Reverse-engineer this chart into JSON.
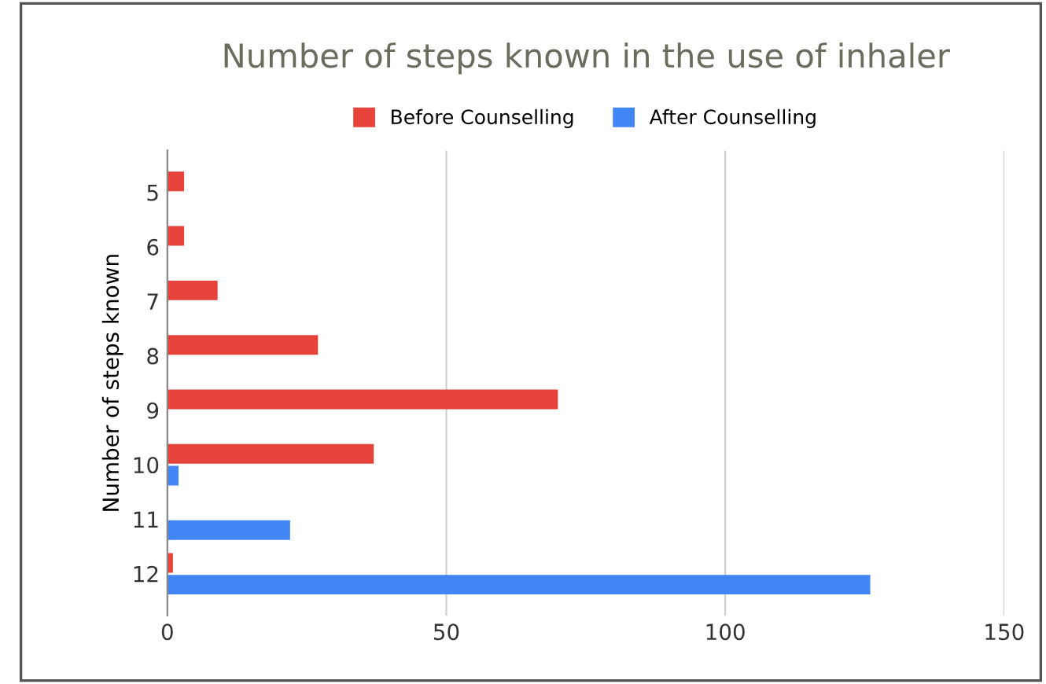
{
  "chart_data": {
    "type": "bar",
    "orientation": "horizontal",
    "title": "Number of steps known in the use of inhaler",
    "ylabel": "Number of steps known",
    "categories": [
      "5",
      "6",
      "7",
      "8",
      "9",
      "10",
      "11",
      "12"
    ],
    "series": [
      {
        "name": "Before Counselling",
        "color": "#e8433a",
        "values": [
          3,
          3,
          9,
          27,
          70,
          37,
          0,
          1
        ]
      },
      {
        "name": "After Counselling",
        "color": "#4285f4",
        "values": [
          0,
          0,
          0,
          0,
          0,
          2,
          22,
          126
        ]
      }
    ],
    "xlim": [
      0,
      150
    ],
    "xticks": [
      0,
      50,
      100,
      150
    ],
    "grid": "x",
    "legend": "top"
  }
}
